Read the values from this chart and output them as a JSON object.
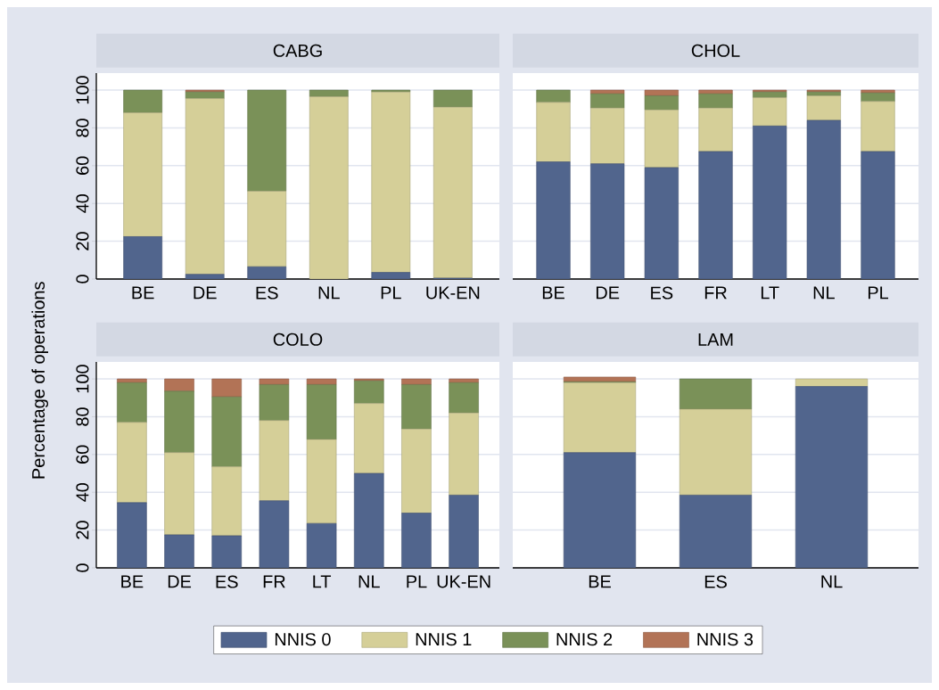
{
  "chart_data": [
    {
      "type": "bar",
      "title": "CABG",
      "stacked": true,
      "categories": [
        "BE",
        "DE",
        "ES",
        "NL",
        "PL",
        "UK-EN"
      ],
      "ylim": [
        0,
        109
      ],
      "yticks": [
        0,
        20,
        40,
        60,
        80,
        100
      ],
      "grid": "y",
      "series": [
        {
          "color": "#51658d",
          "values": [
            22.5,
            2.5,
            6.5,
            0,
            3.5,
            0.5
          ]
        },
        {
          "color": "#d5cf98",
          "values": [
            65.5,
            93,
            40,
            96.5,
            95.5,
            90.5
          ]
        },
        {
          "color": "#7a9158",
          "values": [
            12,
            3.5,
            53.5,
            3.5,
            1,
            9
          ]
        },
        {
          "color": "#b27356",
          "values": [
            0,
            1,
            0,
            0,
            0,
            0
          ]
        }
      ]
    },
    {
      "type": "bar",
      "title": "CHOL",
      "stacked": true,
      "categories": [
        "BE",
        "DE",
        "ES",
        "FR",
        "LT",
        "NL",
        "PL"
      ],
      "ylim": [
        0,
        109
      ],
      "yticks": [
        0,
        20,
        40,
        60,
        80,
        100
      ],
      "grid": "y",
      "tick_labels": "x",
      "series": [
        {
          "color": "#51658d",
          "values": [
            62,
            61,
            59,
            67.5,
            81,
            84,
            67.5
          ]
        },
        {
          "color": "#d5cf98",
          "values": [
            31.5,
            29.5,
            30.5,
            23,
            15,
            13,
            26.5
          ]
        },
        {
          "color": "#7a9158",
          "values": [
            6.5,
            7.5,
            7.5,
            7.5,
            3,
            2,
            4.5
          ]
        },
        {
          "color": "#b27356",
          "values": [
            0,
            2,
            3,
            2,
            1,
            1,
            1.5
          ]
        }
      ]
    },
    {
      "type": "bar",
      "title": "COLO",
      "ylabel": "Percentage of operations",
      "legend": "bottom",
      "stacked": true,
      "categories": [
        "BE",
        "DE",
        "ES",
        "FR",
        "LT",
        "NL",
        "PL",
        "UK-EN"
      ],
      "ylim": [
        0,
        109
      ],
      "yticks": [
        0,
        20,
        40,
        60,
        80,
        100
      ],
      "grid": "y",
      "series": [
        {
          "name": "NNIS 0",
          "color": "#51658d",
          "values": [
            34.5,
            17.5,
            17,
            35.5,
            23.5,
            50,
            29,
            38.5
          ]
        },
        {
          "name": "NNIS 1",
          "color": "#d5cf98",
          "values": [
            42.5,
            43.5,
            36.5,
            42.5,
            44.5,
            37,
            44.5,
            43.5
          ]
        },
        {
          "name": "NNIS 2",
          "color": "#7a9158",
          "values": [
            21,
            32.5,
            37,
            19,
            29,
            12,
            23.5,
            16
          ]
        },
        {
          "name": "NNIS 3",
          "color": "#b27356",
          "values": [
            2,
            6.5,
            9.5,
            3,
            3,
            1,
            3,
            2
          ]
        }
      ]
    },
    {
      "type": "bar",
      "title": "LAM",
      "stacked": true,
      "categories": [
        "BE",
        "ES",
        "NL"
      ],
      "ylim": [
        0,
        109
      ],
      "yticks": [
        0,
        20,
        40,
        60,
        80,
        100
      ],
      "grid": "y",
      "tick_labels": "x",
      "series": [
        {
          "color": "#51658d",
          "values": [
            61,
            38.5,
            96
          ]
        },
        {
          "color": "#d5cf98",
          "values": [
            37,
            45.5,
            4
          ]
        },
        {
          "color": "#7a9158",
          "values": [
            0.5,
            16,
            0
          ]
        },
        {
          "color": "#b27356",
          "values": [
            2.5,
            0,
            0
          ]
        }
      ]
    }
  ]
}
